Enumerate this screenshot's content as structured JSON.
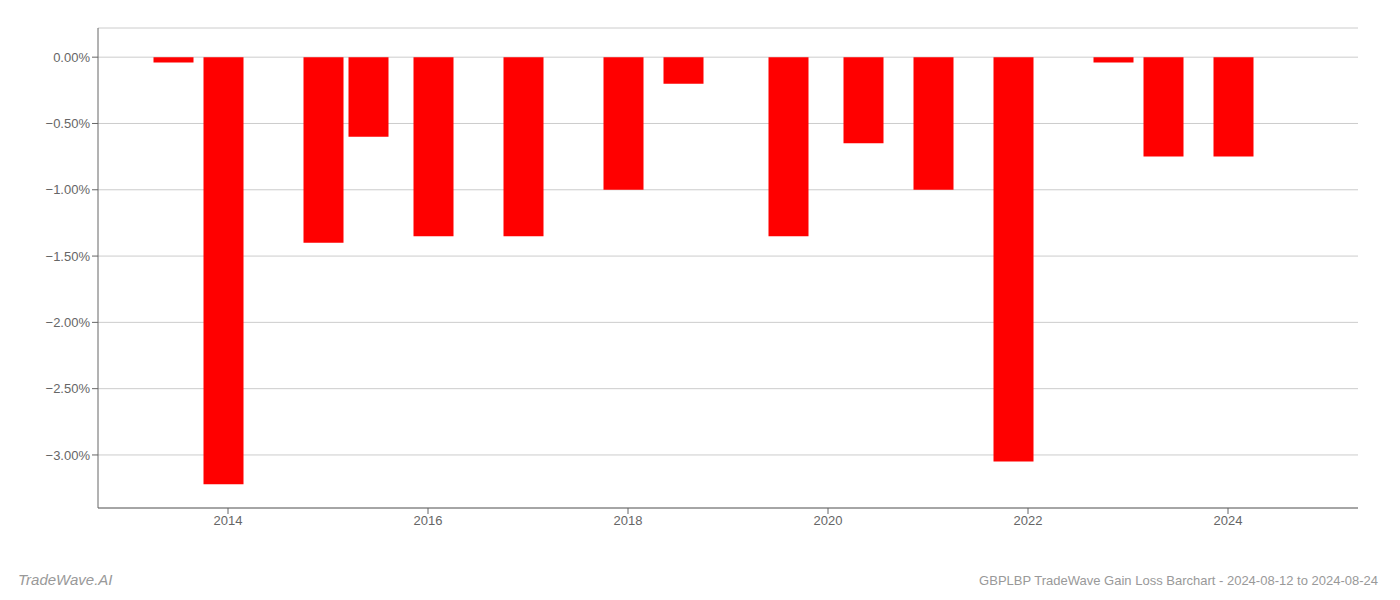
{
  "chart_data": {
    "type": "bar",
    "title": "GBPLBP TradeWave Gain Loss Barchart - 2024-08-12 to 2024-08-24",
    "annotations": [
      "TradeWave.AI"
    ],
    "x": [
      2013.45,
      2013.95,
      2014.95,
      2015.4,
      2016.05,
      2016.95,
      2017.95,
      2018.55,
      2019.6,
      2020.35,
      2021.05,
      2021.85,
      2022.85,
      2023.35,
      2024.05
    ],
    "values": [
      -0.04,
      -3.22,
      -1.4,
      -0.6,
      -1.35,
      -1.35,
      -1.0,
      -0.2,
      -1.35,
      -0.65,
      -1.0,
      -3.05,
      -0.04,
      -0.75,
      -0.75
    ],
    "color": "#ff0000",
    "xlim": [
      2012.7,
      2025.3
    ],
    "xticks": [
      2014,
      2016,
      2018,
      2020,
      2022,
      2024
    ],
    "ylim": [
      -3.4,
      0.22
    ],
    "yticks": [
      {
        "value": 0,
        "label": "0.00%"
      },
      {
        "value": -0.5,
        "label": "−0.50%"
      },
      {
        "value": -1.0,
        "label": "−1.00%"
      },
      {
        "value": -1.5,
        "label": "−1.50%"
      },
      {
        "value": -2.0,
        "label": "−2.00%"
      },
      {
        "value": -2.5,
        "label": "−2.50%"
      },
      {
        "value": -3.0,
        "label": "−3.00%"
      }
    ],
    "grid": true
  }
}
